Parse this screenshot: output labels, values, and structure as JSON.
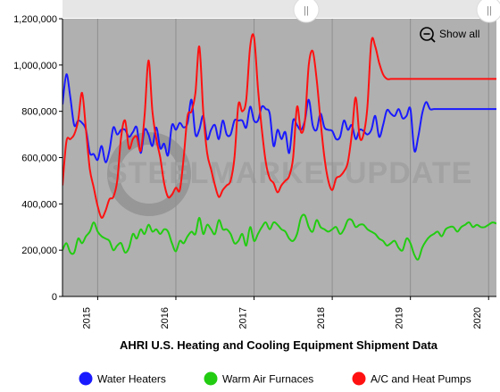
{
  "chart_data": {
    "type": "line",
    "title": "AHRI U.S. Heating and Cooling Equipment Shipment Data",
    "xlabel": "",
    "ylabel": "",
    "ylim": [
      0,
      1200000
    ],
    "xlim": [
      2014.55,
      2020.1
    ],
    "y_ticks": [
      0,
      200000,
      400000,
      600000,
      800000,
      1000000,
      1200000
    ],
    "y_tick_labels": [
      "0",
      "200,000",
      "400,000",
      "600,000",
      "800,000",
      "1,000,000",
      "1,200,000"
    ],
    "x_ticks": [
      2015,
      2016,
      2017,
      2018,
      2019,
      2020
    ],
    "x_tick_labels": [
      "2015",
      "2016",
      "2017",
      "2018",
      "2019",
      "2020"
    ],
    "grid": "vertical",
    "legend_position": "bottom",
    "watermark": "STEELMARKETUPDATE",
    "series": [
      {
        "name": "Water Heaters",
        "color": "#1a1aff",
        "x": [
          2014.55,
          2014.6,
          2014.65,
          2014.7,
          2014.75,
          2014.8,
          2014.85,
          2014.9,
          2014.95,
          2015.0,
          2015.05,
          2015.1,
          2015.15,
          2015.2,
          2015.25,
          2015.3,
          2015.35,
          2015.4,
          2015.45,
          2015.5,
          2015.55,
          2015.6,
          2015.65,
          2015.7,
          2015.75,
          2015.8,
          2015.85,
          2015.9,
          2015.95,
          2016.0,
          2016.05,
          2016.1,
          2016.15,
          2016.2,
          2016.25,
          2016.3,
          2016.35,
          2016.4,
          2016.45,
          2016.5,
          2016.55,
          2016.6,
          2016.65,
          2016.7,
          2016.75,
          2016.8,
          2016.85,
          2016.9,
          2016.95,
          2017.0,
          2017.05,
          2017.1,
          2017.15,
          2017.2,
          2017.25,
          2017.3,
          2017.35,
          2017.4,
          2017.45,
          2017.5,
          2017.55,
          2017.6,
          2017.65,
          2017.7,
          2017.75,
          2017.8,
          2017.85,
          2017.9,
          2017.95,
          2018.0,
          2018.05,
          2018.1,
          2018.15,
          2018.2,
          2018.25,
          2018.3,
          2018.35,
          2018.4,
          2018.45,
          2018.5,
          2018.55,
          2018.6,
          2018.65,
          2018.7,
          2018.75,
          2018.8,
          2018.85,
          2018.9,
          2018.95,
          2019.0,
          2019.05,
          2019.1,
          2019.15,
          2019.2,
          2019.25,
          2019.3,
          2019.35,
          2019.4,
          2019.45,
          2019.5,
          2019.55,
          2019.6,
          2019.65,
          2019.7,
          2019.75,
          2019.8,
          2019.85,
          2019.9,
          2019.95,
          2020.0,
          2020.05,
          2020.1
        ],
        "y": [
          830000,
          960000,
          860000,
          740000,
          760000,
          750000,
          720000,
          620000,
          615000,
          590000,
          650000,
          580000,
          630000,
          730000,
          700000,
          720000,
          720000,
          690000,
          710000,
          730000,
          620000,
          720000,
          700000,
          650000,
          730000,
          640000,
          660000,
          610000,
          740000,
          720000,
          750000,
          730000,
          750000,
          850000,
          700000,
          720000,
          780000,
          680000,
          720000,
          740000,
          680000,
          760000,
          700000,
          700000,
          760000,
          760000,
          760000,
          730000,
          820000,
          760000,
          760000,
          820000,
          810000,
          790000,
          650000,
          720000,
          680000,
          710000,
          620000,
          760000,
          740000,
          720000,
          760000,
          850000,
          740000,
          720000,
          790000,
          730000,
          720000,
          715000,
          680000,
          690000,
          760000,
          720000,
          740000,
          680000,
          720000,
          715000,
          700000,
          720000,
          780000,
          690000,
          740000,
          805000,
          790000,
          780000,
          810000,
          770000,
          780000,
          810000,
          630000,
          690000,
          790000,
          840000,
          810000,
          810000,
          810000,
          810000,
          810000,
          810000,
          810000,
          810000,
          810000,
          810000,
          810000,
          810000,
          810000,
          810000,
          810000,
          810000,
          810000,
          810000
        ]
      },
      {
        "name": "Warm Air Furnaces",
        "color": "#22cc11",
        "x": [
          2014.55,
          2014.6,
          2014.65,
          2014.7,
          2014.75,
          2014.8,
          2014.85,
          2014.9,
          2014.95,
          2015.0,
          2015.05,
          2015.1,
          2015.15,
          2015.2,
          2015.25,
          2015.3,
          2015.35,
          2015.4,
          2015.45,
          2015.5,
          2015.55,
          2015.6,
          2015.65,
          2015.7,
          2015.75,
          2015.8,
          2015.85,
          2015.9,
          2015.95,
          2016.0,
          2016.05,
          2016.1,
          2016.15,
          2016.2,
          2016.25,
          2016.3,
          2016.35,
          2016.4,
          2016.45,
          2016.5,
          2016.55,
          2016.6,
          2016.65,
          2016.7,
          2016.75,
          2016.8,
          2016.85,
          2016.9,
          2016.95,
          2017.0,
          2017.05,
          2017.1,
          2017.15,
          2017.2,
          2017.25,
          2017.3,
          2017.35,
          2017.4,
          2017.45,
          2017.5,
          2017.55,
          2017.6,
          2017.65,
          2017.7,
          2017.75,
          2017.8,
          2017.85,
          2017.9,
          2017.95,
          2018.0,
          2018.05,
          2018.1,
          2018.15,
          2018.2,
          2018.25,
          2018.3,
          2018.35,
          2018.4,
          2018.45,
          2018.5,
          2018.55,
          2018.6,
          2018.65,
          2018.7,
          2018.75,
          2018.8,
          2018.85,
          2018.9,
          2018.95,
          2019.0,
          2019.05,
          2019.1,
          2019.15,
          2019.2,
          2019.25,
          2019.3,
          2019.35,
          2019.4,
          2019.45,
          2019.5,
          2019.55,
          2019.6,
          2019.65,
          2019.7,
          2019.75,
          2019.8,
          2019.85,
          2019.9,
          2019.95,
          2020.0,
          2020.05,
          2020.1
        ],
        "y": [
          200000,
          230000,
          190000,
          190000,
          250000,
          230000,
          260000,
          280000,
          320000,
          280000,
          260000,
          250000,
          240000,
          200000,
          220000,
          230000,
          190000,
          210000,
          270000,
          250000,
          290000,
          270000,
          310000,
          280000,
          290000,
          270000,
          290000,
          280000,
          230000,
          195000,
          240000,
          230000,
          260000,
          280000,
          270000,
          340000,
          270000,
          310000,
          290000,
          270000,
          330000,
          290000,
          290000,
          270000,
          230000,
          240000,
          270000,
          220000,
          300000,
          240000,
          270000,
          300000,
          320000,
          290000,
          320000,
          310000,
          290000,
          280000,
          250000,
          240000,
          270000,
          340000,
          350000,
          300000,
          280000,
          330000,
          300000,
          290000,
          280000,
          290000,
          300000,
          270000,
          290000,
          330000,
          330000,
          300000,
          310000,
          310000,
          290000,
          280000,
          270000,
          250000,
          240000,
          220000,
          230000,
          240000,
          210000,
          200000,
          250000,
          230000,
          180000,
          160000,
          210000,
          240000,
          260000,
          270000,
          280000,
          260000,
          290000,
          300000,
          300000,
          280000,
          300000,
          310000,
          320000,
          300000,
          310000,
          300000,
          300000,
          310000,
          320000,
          315000
        ]
      },
      {
        "name": "A/C and Heat Pumps",
        "color": "#ff1111",
        "x": [
          2014.55,
          2014.6,
          2014.65,
          2014.7,
          2014.75,
          2014.8,
          2014.85,
          2014.9,
          2014.95,
          2015.0,
          2015.05,
          2015.1,
          2015.15,
          2015.2,
          2015.25,
          2015.3,
          2015.35,
          2015.4,
          2015.45,
          2015.5,
          2015.55,
          2015.6,
          2015.65,
          2015.7,
          2015.75,
          2015.8,
          2015.85,
          2015.9,
          2015.95,
          2016.0,
          2016.05,
          2016.1,
          2016.15,
          2016.2,
          2016.25,
          2016.3,
          2016.35,
          2016.4,
          2016.45,
          2016.5,
          2016.55,
          2016.6,
          2016.65,
          2016.7,
          2016.75,
          2016.8,
          2016.85,
          2016.9,
          2016.95,
          2017.0,
          2017.05,
          2017.1,
          2017.15,
          2017.2,
          2017.25,
          2017.3,
          2017.35,
          2017.4,
          2017.45,
          2017.5,
          2017.55,
          2017.6,
          2017.65,
          2017.7,
          2017.75,
          2017.8,
          2017.85,
          2017.9,
          2017.95,
          2018.0,
          2018.05,
          2018.1,
          2018.15,
          2018.2,
          2018.25,
          2018.3,
          2018.35,
          2018.4,
          2018.45,
          2018.5,
          2018.55,
          2018.6,
          2018.65,
          2018.7,
          2018.75,
          2018.8,
          2018.85,
          2018.9,
          2018.95,
          2019.0,
          2019.05,
          2019.1,
          2019.15,
          2019.2,
          2019.25,
          2019.3,
          2019.35,
          2019.4,
          2019.45,
          2019.5,
          2019.55,
          2019.6,
          2019.65,
          2019.7,
          2019.75,
          2019.8,
          2019.85,
          2019.9,
          2019.95,
          2020.0,
          2020.05,
          2020.1
        ],
        "y": [
          480000,
          670000,
          680000,
          700000,
          760000,
          880000,
          720000,
          550000,
          470000,
          390000,
          340000,
          370000,
          420000,
          430000,
          500000,
          690000,
          760000,
          640000,
          680000,
          690000,
          630000,
          780000,
          1020000,
          800000,
          680000,
          600000,
          490000,
          430000,
          440000,
          470000,
          460000,
          600000,
          780000,
          800000,
          880000,
          1080000,
          800000,
          620000,
          550000,
          480000,
          430000,
          460000,
          480000,
          500000,
          600000,
          830000,
          800000,
          850000,
          1080000,
          1120000,
          900000,
          720000,
          580000,
          510000,
          490000,
          450000,
          480000,
          500000,
          520000,
          600000,
          820000,
          710000,
          760000,
          1000000,
          1060000,
          940000,
          760000,
          600000,
          500000,
          460000,
          510000,
          520000,
          540000,
          580000,
          700000,
          860000,
          690000,
          700000,
          820000,
          1100000,
          1080000,
          1010000,
          960000,
          940000,
          940000,
          940000,
          940000,
          940000,
          940000,
          940000,
          940000,
          940000,
          940000,
          940000,
          940000,
          940000,
          940000,
          940000,
          940000,
          940000,
          940000,
          940000,
          940000,
          940000,
          940000,
          940000,
          940000,
          940000,
          940000,
          940000,
          940000,
          940000
        ]
      }
    ],
    "scroll_thumb_icon": "vertical-grip-icon"
  },
  "toolbar": {
    "show_all_label": "Show all",
    "zoom_icon": "zoom-out-icon"
  }
}
